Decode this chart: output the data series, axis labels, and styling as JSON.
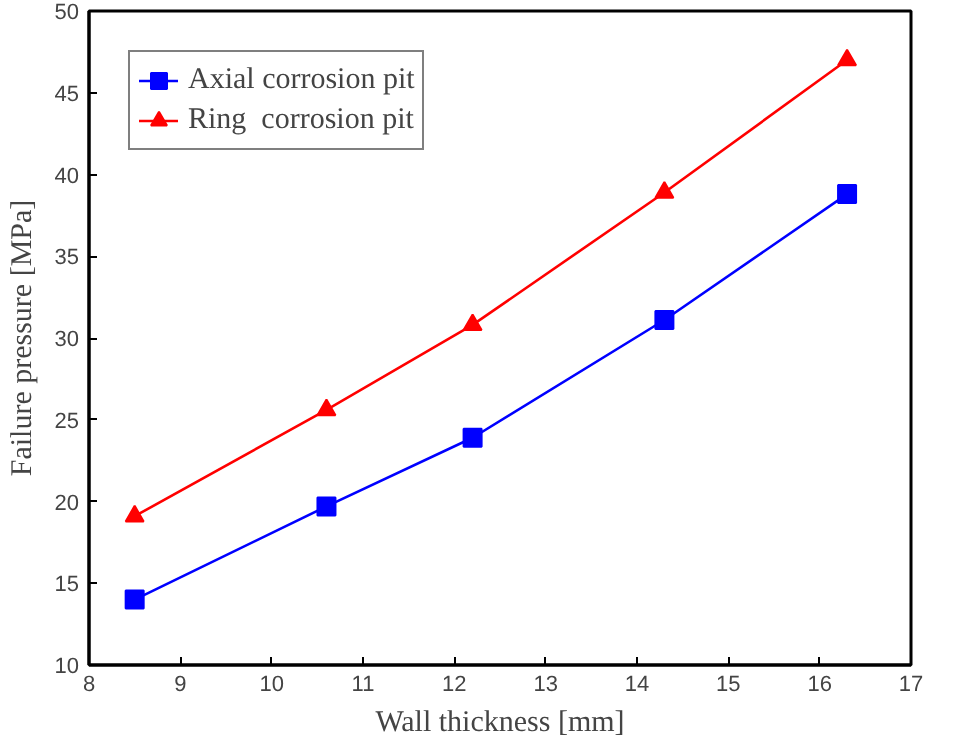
{
  "chart_data": {
    "type": "line",
    "xlabel": "Wall thickness [mm]",
    "ylabel": "Failure pressure [MPa]",
    "x": [
      8.5,
      10.6,
      12.2,
      14.3,
      16.3
    ],
    "series": [
      {
        "name": "Axial corrosion pit",
        "color": "#0000ff",
        "marker": "square",
        "values": [
          14.0,
          19.7,
          23.9,
          31.1,
          38.8
        ]
      },
      {
        "name": "Ring  corrosion pit",
        "color": "#ff0000",
        "marker": "triangle",
        "values": [
          19.1,
          25.6,
          30.8,
          38.9,
          47.0
        ]
      }
    ],
    "xlim": [
      8,
      17
    ],
    "xticks": [
      8,
      9,
      10,
      11,
      12,
      13,
      14,
      15,
      16,
      17
    ],
    "ylim": [
      10,
      50
    ],
    "yticks": [
      10,
      15,
      20,
      25,
      30,
      35,
      40,
      45,
      50
    ],
    "grid": false,
    "legend": "top left",
    "line_style": "solid"
  }
}
